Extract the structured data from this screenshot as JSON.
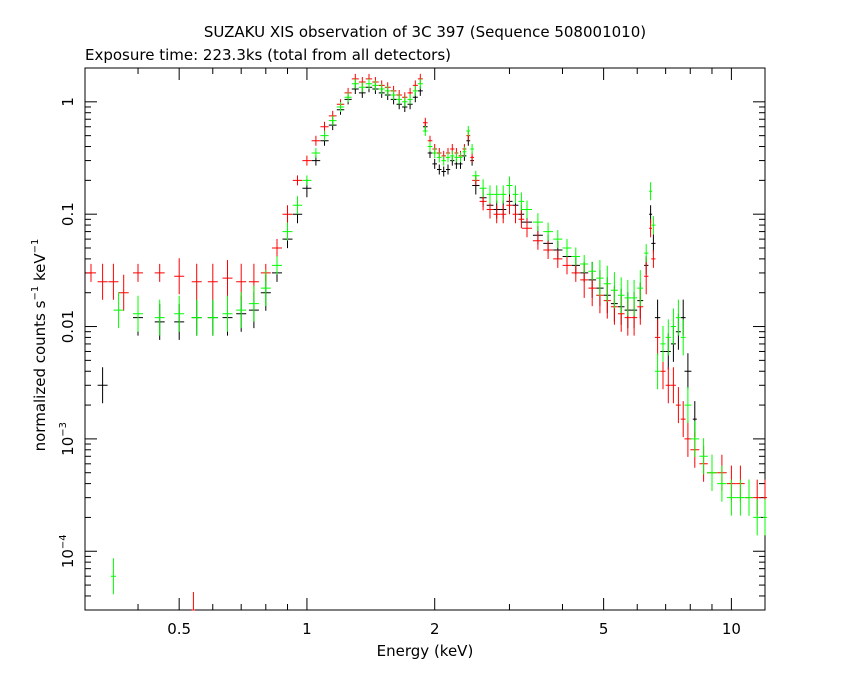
{
  "chart_data": {
    "type": "scatter",
    "title": "SUZAKU XIS observation of 3C 397 (Sequence 508001010)",
    "subtitle": "Exposure time: 223.3ks (total from all detectors)",
    "xlabel": "Energy (keV)",
    "ylabel_parts": {
      "prefix": "normalized counts s",
      "exp1": "−1",
      "mid": " keV",
      "exp2": "−1"
    },
    "x_scale": "log",
    "y_scale": "log",
    "xlim": [
      0.3,
      12
    ],
    "ylim": [
      3e-05,
      2
    ],
    "grid": false,
    "xticks": [
      {
        "value": 0.5,
        "label": "0.5"
      },
      {
        "value": 1,
        "label": "1"
      },
      {
        "value": 2,
        "label": "2"
      },
      {
        "value": 5,
        "label": "5"
      },
      {
        "value": 10,
        "label": "10"
      }
    ],
    "yticks": [
      {
        "value": 0.0001,
        "base": "10",
        "exp": "−4"
      },
      {
        "value": 0.001,
        "base": "10",
        "exp": "−3"
      },
      {
        "value": 0.01,
        "label": "0.01"
      },
      {
        "value": 0.1,
        "label": "0.1"
      },
      {
        "value": 1,
        "label": "1"
      }
    ],
    "series": [
      {
        "color": "#000000",
        "x": [
          0.33,
          0.4,
          0.45,
          0.5,
          0.55,
          0.6,
          0.65,
          0.7,
          0.75,
          0.8,
          0.85,
          0.9,
          0.95,
          1.0,
          1.05,
          1.1,
          1.15,
          1.2,
          1.25,
          1.3,
          1.35,
          1.4,
          1.45,
          1.5,
          1.55,
          1.6,
          1.65,
          1.7,
          1.75,
          1.8,
          1.85,
          1.9,
          1.95,
          2.0,
          2.05,
          2.1,
          2.15,
          2.2,
          2.25,
          2.3,
          2.35,
          2.4,
          2.45,
          2.5,
          2.6,
          2.7,
          2.8,
          2.9,
          3.0,
          3.1,
          3.2,
          3.3,
          3.5,
          3.7,
          3.9,
          4.1,
          4.3,
          4.5,
          4.7,
          4.9,
          5.1,
          5.3,
          5.5,
          5.7,
          5.9,
          6.1,
          6.3,
          6.45,
          6.55,
          6.7,
          6.9,
          7.1,
          7.3,
          7.5,
          7.7,
          7.9,
          8.2
        ],
        "y": [
          0.003,
          0.012,
          0.011,
          0.011,
          0.012,
          0.012,
          0.012,
          0.013,
          0.014,
          0.02,
          0.03,
          0.06,
          0.1,
          0.17,
          0.3,
          0.45,
          0.62,
          0.85,
          1.05,
          1.3,
          1.2,
          1.35,
          1.3,
          1.2,
          1.15,
          1.05,
          0.95,
          0.9,
          0.95,
          1.1,
          1.25,
          0.6,
          0.35,
          0.28,
          0.25,
          0.24,
          0.25,
          0.3,
          0.28,
          0.28,
          0.33,
          0.45,
          0.3,
          0.18,
          0.14,
          0.12,
          0.11,
          0.11,
          0.13,
          0.12,
          0.1,
          0.085,
          0.065,
          0.055,
          0.048,
          0.042,
          0.035,
          0.03,
          0.026,
          0.022,
          0.019,
          0.016,
          0.015,
          0.014,
          0.014,
          0.017,
          0.035,
          0.1,
          0.055,
          0.012,
          0.006,
          0.006,
          0.007,
          0.009,
          0.012,
          0.004,
          0.0015
        ]
      },
      {
        "color": "#ff0000",
        "x": [
          0.31,
          0.33,
          0.35,
          0.37,
          0.4,
          0.45,
          0.5,
          0.54,
          0.55,
          0.6,
          0.65,
          0.7,
          0.75,
          0.8,
          0.85,
          0.9,
          0.95,
          1.0,
          1.05,
          1.1,
          1.15,
          1.2,
          1.25,
          1.3,
          1.35,
          1.4,
          1.45,
          1.5,
          1.55,
          1.6,
          1.65,
          1.7,
          1.75,
          1.8,
          1.85,
          1.9,
          1.95,
          2.0,
          2.05,
          2.1,
          2.15,
          2.2,
          2.25,
          2.3,
          2.35,
          2.4,
          2.45,
          2.5,
          2.6,
          2.7,
          2.8,
          2.9,
          3.0,
          3.1,
          3.2,
          3.3,
          3.5,
          3.7,
          3.9,
          4.1,
          4.3,
          4.5,
          4.7,
          4.9,
          5.1,
          5.3,
          5.5,
          5.7,
          5.9,
          6.1,
          6.3,
          6.45,
          6.55,
          6.7,
          6.9,
          7.1,
          7.3,
          7.5,
          7.7,
          7.9,
          8.2,
          8.6,
          9.0,
          9.5,
          10.0,
          10.5,
          11.0,
          11.5,
          12.0
        ],
        "y": [
          0.03,
          0.025,
          0.025,
          0.02,
          0.03,
          0.03,
          0.028,
          3e-05,
          0.025,
          0.025,
          0.027,
          0.025,
          0.025,
          0.03,
          0.05,
          0.1,
          0.2,
          0.3,
          0.45,
          0.6,
          0.75,
          0.95,
          1.2,
          1.6,
          1.5,
          1.6,
          1.5,
          1.4,
          1.35,
          1.25,
          1.15,
          1.1,
          1.2,
          1.4,
          1.6,
          0.65,
          0.45,
          0.38,
          0.35,
          0.33,
          0.35,
          0.38,
          0.35,
          0.33,
          0.38,
          0.5,
          0.32,
          0.2,
          0.13,
          0.11,
          0.1,
          0.1,
          0.12,
          0.1,
          0.09,
          0.075,
          0.058,
          0.048,
          0.04,
          0.035,
          0.03,
          0.026,
          0.022,
          0.019,
          0.017,
          0.015,
          0.013,
          0.012,
          0.012,
          0.015,
          0.028,
          0.075,
          0.04,
          0.008,
          0.004,
          0.003,
          0.003,
          0.002,
          0.0015,
          0.001,
          0.0008,
          0.0006,
          0.0005,
          0.0005,
          0.0004,
          0.0004,
          0.0003,
          0.0003,
          0.0003
        ]
      },
      {
        "color": "#00ff00",
        "x": [
          0.35,
          0.36,
          0.4,
          0.45,
          0.5,
          0.55,
          0.6,
          0.65,
          0.7,
          0.75,
          0.8,
          0.85,
          0.9,
          0.95,
          1.0,
          1.05,
          1.1,
          1.15,
          1.2,
          1.25,
          1.3,
          1.35,
          1.4,
          1.45,
          1.5,
          1.55,
          1.6,
          1.65,
          1.7,
          1.75,
          1.8,
          1.85,
          1.9,
          1.95,
          2.0,
          2.05,
          2.1,
          2.15,
          2.2,
          2.25,
          2.3,
          2.35,
          2.4,
          2.45,
          2.5,
          2.6,
          2.7,
          2.8,
          2.9,
          3.0,
          3.1,
          3.2,
          3.3,
          3.5,
          3.7,
          3.9,
          4.1,
          4.3,
          4.5,
          4.7,
          4.9,
          5.1,
          5.3,
          5.5,
          5.7,
          5.9,
          6.1,
          6.3,
          6.45,
          6.55,
          6.7,
          6.9,
          7.1,
          7.3,
          7.5,
          7.7,
          7.9,
          8.2,
          8.6,
          9.0,
          9.5,
          10.0,
          10.5,
          11.0,
          11.5,
          12.0
        ],
        "y": [
          6e-05,
          0.014,
          0.013,
          0.012,
          0.013,
          0.012,
          0.012,
          0.013,
          0.014,
          0.016,
          0.022,
          0.035,
          0.07,
          0.12,
          0.2,
          0.35,
          0.5,
          0.68,
          0.9,
          1.1,
          1.45,
          1.35,
          1.45,
          1.4,
          1.3,
          1.25,
          1.15,
          1.05,
          1.0,
          1.05,
          1.25,
          1.45,
          0.55,
          0.4,
          0.35,
          0.32,
          0.3,
          0.32,
          0.33,
          0.32,
          0.32,
          0.36,
          0.55,
          0.38,
          0.22,
          0.17,
          0.15,
          0.15,
          0.15,
          0.18,
          0.15,
          0.13,
          0.11,
          0.085,
          0.07,
          0.06,
          0.05,
          0.042,
          0.036,
          0.031,
          0.027,
          0.024,
          0.021,
          0.019,
          0.018,
          0.018,
          0.022,
          0.045,
          0.16,
          0.08,
          0.004,
          0.007,
          0.008,
          0.01,
          0.012,
          0.008,
          0.002,
          0.001,
          0.0007,
          0.0005,
          0.0004,
          0.0003,
          0.0003,
          0.0003,
          0.0002,
          0.0002
        ]
      }
    ]
  }
}
